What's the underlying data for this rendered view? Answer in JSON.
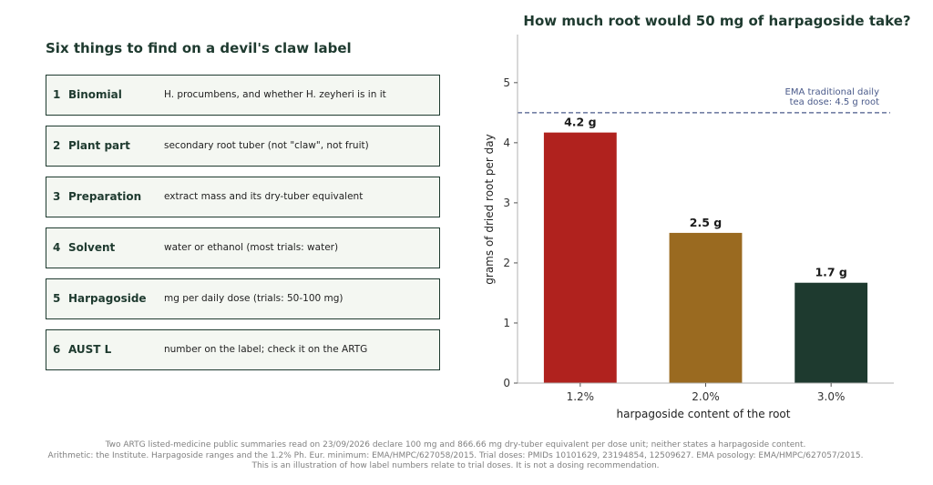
{
  "left_panel": {
    "title": "Six things to find on a devil's claw label",
    "items": [
      {
        "num": "1",
        "name": "Binomial",
        "desc": "H. procumbens, and whether H. zeyheri is in it"
      },
      {
        "num": "2",
        "name": "Plant part",
        "desc": "secondary root tuber (not \"claw\", not fruit)"
      },
      {
        "num": "3",
        "name": "Preparation",
        "desc": "extract mass and its dry-tuber equivalent"
      },
      {
        "num": "4",
        "name": "Solvent",
        "desc": "water or ethanol (most trials: water)"
      },
      {
        "num": "5",
        "name": "Harpagoside",
        "desc": "mg per daily dose (trials: 50-100 mg)"
      },
      {
        "num": "6",
        "name": "AUST L",
        "desc": "number on the label; check it on the ARTG"
      }
    ]
  },
  "chart_data": {
    "type": "bar",
    "title": "How much root would 50 mg of harpagoside take?",
    "xlabel": "harpagoside content of the root",
    "ylabel": "grams of dried root per day",
    "categories": [
      "1.2%",
      "2.0%",
      "3.0%"
    ],
    "values": [
      4.17,
      2.5,
      1.67
    ],
    "value_labels": [
      "4.2 g",
      "2.5 g",
      "1.7 g"
    ],
    "colors": [
      "#b0221e",
      "#9a6a20",
      "#1e3a2f"
    ],
    "ylim": [
      0,
      5.8
    ],
    "yticks": [
      0,
      1,
      2,
      3,
      4,
      5
    ],
    "reference_line": {
      "value": 4.5,
      "label_lines": [
        "EMA traditional daily",
        "tea dose: 4.5 g root"
      ],
      "color": "#4a5a8a"
    },
    "grid": false
  },
  "footnotes": [
    "Two ARTG listed-medicine public summaries read on 23/09/2026 declare 100 mg and 866.66 mg dry-tuber equivalent per dose unit; neither states a harpagoside content.",
    "Arithmetic: the Institute. Harpagoside ranges and the 1.2% Ph. Eur. minimum: EMA/HMPC/627058/2015. Trial doses: PMIDs 10101629, 23194854, 12509627. EMA posology: EMA/HMPC/627057/2015.",
    "This is an illustration of how label numbers relate to trial doses. It is not a dosing recommendation."
  ]
}
